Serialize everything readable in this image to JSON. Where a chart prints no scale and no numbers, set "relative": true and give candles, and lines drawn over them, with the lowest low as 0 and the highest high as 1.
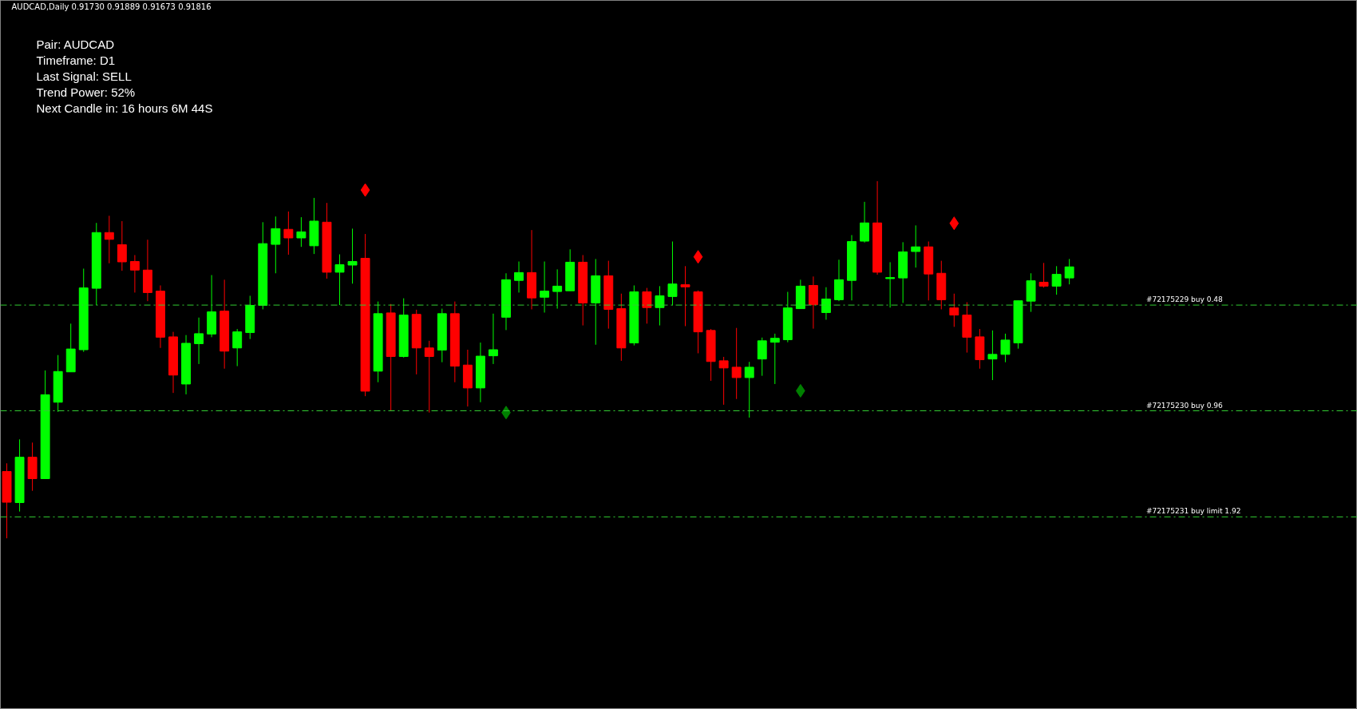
{
  "chart_data": {
    "type": "candlestick",
    "relative": true,
    "title": "AUDCAD,Daily  0.91730 0.91889 0.91673 0.91816",
    "annotations": [
      "Pair: AUDCAD",
      "Timeframe: D1",
      "Last Signal:  SELL",
      "Trend Power: 52%",
      "Next Candle in: 16 hours 6M 44S"
    ],
    "categories": [
      null,
      null,
      null,
      null,
      null,
      null,
      null,
      null,
      null,
      null,
      null,
      null,
      null,
      null,
      null,
      null,
      null,
      null,
      null,
      null,
      null,
      null,
      null,
      null,
      null,
      null,
      null,
      null,
      null,
      null,
      null,
      null,
      null,
      null,
      null,
      null,
      null,
      null,
      null,
      null,
      null,
      null,
      null,
      null,
      null,
      null,
      null,
      null,
      null,
      null,
      null,
      null,
      null,
      null,
      null,
      null,
      null,
      null,
      null,
      null,
      null,
      null,
      null,
      null,
      null,
      null,
      null,
      null,
      null,
      null,
      null,
      null,
      null,
      null,
      null,
      null,
      null,
      null,
      null,
      null,
      null,
      null,
      null,
      null
    ],
    "ohlc": [
      [
        0.187,
        0.21,
        0.0,
        0.101
      ],
      [
        0.1,
        0.277,
        0.075,
        0.227
      ],
      [
        0.227,
        0.268,
        0.133,
        0.167
      ],
      [
        0.167,
        0.47,
        0.167,
        0.402
      ],
      [
        0.381,
        0.513,
        0.354,
        0.467
      ],
      [
        0.466,
        0.601,
        0.466,
        0.53
      ],
      [
        0.528,
        0.755,
        0.522,
        0.701
      ],
      [
        0.7,
        0.883,
        0.653,
        0.856
      ],
      [
        0.856,
        0.903,
        0.77,
        0.837
      ],
      [
        0.822,
        0.888,
        0.749,
        0.774
      ],
      [
        0.775,
        0.793,
        0.688,
        0.751
      ],
      [
        0.751,
        0.836,
        0.664,
        0.688
      ],
      [
        0.692,
        0.708,
        0.533,
        0.563
      ],
      [
        0.564,
        0.578,
        0.407,
        0.457
      ],
      [
        0.432,
        0.569,
        0.403,
        0.546
      ],
      [
        0.545,
        0.618,
        0.488,
        0.573
      ],
      [
        0.572,
        0.737,
        0.563,
        0.634
      ],
      [
        0.636,
        0.724,
        0.475,
        0.524
      ],
      [
        0.533,
        0.586,
        0.482,
        0.578
      ],
      [
        0.576,
        0.679,
        0.558,
        0.652
      ],
      [
        0.652,
        0.885,
        0.641,
        0.825
      ],
      [
        0.823,
        0.901,
        0.742,
        0.867
      ],
      [
        0.865,
        0.915,
        0.794,
        0.841
      ],
      [
        0.841,
        0.899,
        0.816,
        0.858
      ],
      [
        0.819,
        0.953,
        0.796,
        0.888
      ],
      [
        0.885,
        0.939,
        0.727,
        0.745
      ],
      [
        0.745,
        0.795,
        0.653,
        0.766
      ],
      [
        0.765,
        0.867,
        0.713,
        0.775
      ],
      [
        0.784,
        0.852,
        0.398,
        0.412
      ],
      [
        0.468,
        0.663,
        0.437,
        0.629
      ],
      [
        0.631,
        0.656,
        0.357,
        0.509
      ],
      [
        0.509,
        0.672,
        0.506,
        0.625
      ],
      [
        0.627,
        0.64,
        0.459,
        0.533
      ],
      [
        0.533,
        0.553,
        0.352,
        0.509
      ],
      [
        0.527,
        0.643,
        0.493,
        0.629
      ],
      [
        0.629,
        0.663,
        0.437,
        0.482
      ],
      [
        0.485,
        0.528,
        0.369,
        0.421
      ],
      [
        0.421,
        0.548,
        0.381,
        0.51
      ],
      [
        0.511,
        0.629,
        0.488,
        0.528
      ],
      [
        0.619,
        0.742,
        0.583,
        0.724
      ],
      [
        0.722,
        0.775,
        0.688,
        0.744
      ],
      [
        0.744,
        0.863,
        0.641,
        0.673
      ],
      [
        0.675,
        0.775,
        0.632,
        0.692
      ],
      [
        0.691,
        0.753,
        0.643,
        0.706
      ],
      [
        0.693,
        0.809,
        0.693,
        0.773
      ],
      [
        0.773,
        0.793,
        0.596,
        0.659
      ],
      [
        0.659,
        0.782,
        0.542,
        0.735
      ],
      [
        0.735,
        0.777,
        0.587,
        0.641
      ],
      [
        0.643,
        0.685,
        0.497,
        0.533
      ],
      [
        0.547,
        0.708,
        0.54,
        0.69
      ],
      [
        0.69,
        0.701,
        0.601,
        0.646
      ],
      [
        0.646,
        0.706,
        0.596,
        0.679
      ],
      [
        0.677,
        0.831,
        0.652,
        0.712
      ],
      [
        0.71,
        0.762,
        0.594,
        0.704
      ],
      [
        0.69,
        0.694,
        0.518,
        0.578
      ],
      [
        0.582,
        0.586,
        0.441,
        0.495
      ],
      [
        0.497,
        0.508,
        0.374,
        0.477
      ],
      [
        0.479,
        0.589,
        0.39,
        0.45
      ],
      [
        0.45,
        0.494,
        0.338,
        0.479
      ],
      [
        0.502,
        0.562,
        0.455,
        0.553
      ],
      [
        0.549,
        0.573,
        0.432,
        0.56
      ],
      [
        0.556,
        0.69,
        0.549,
        0.645
      ],
      [
        0.643,
        0.724,
        0.643,
        0.706
      ],
      [
        0.708,
        0.733,
        0.587,
        0.654
      ],
      [
        0.632,
        0.703,
        0.612,
        0.67
      ],
      [
        0.668,
        0.78,
        0.664,
        0.724
      ],
      [
        0.722,
        0.849,
        0.666,
        0.831
      ],
      [
        0.832,
        0.942,
        0.828,
        0.883
      ],
      [
        0.883,
        1.0,
        0.738,
        0.745
      ],
      [
        0.727,
        0.773,
        0.646,
        0.73
      ],
      [
        0.729,
        0.829,
        0.659,
        0.802
      ],
      [
        0.803,
        0.876,
        0.758,
        0.816
      ],
      [
        0.816,
        0.831,
        0.666,
        0.74
      ],
      [
        0.742,
        0.777,
        0.641,
        0.668
      ],
      [
        0.645,
        0.685,
        0.592,
        0.625
      ],
      [
        0.625,
        0.661,
        0.52,
        0.563
      ],
      [
        0.564,
        0.586,
        0.475,
        0.5
      ],
      [
        0.502,
        0.582,
        0.443,
        0.515
      ],
      [
        0.515,
        0.573,
        0.493,
        0.555
      ],
      [
        0.547,
        0.665,
        0.531,
        0.665
      ],
      [
        0.664,
        0.742,
        0.634,
        0.721
      ],
      [
        0.717,
        0.771,
        0.702,
        0.706
      ],
      [
        0.706,
        0.762,
        0.682,
        0.739
      ],
      [
        0.729,
        0.782,
        0.711,
        0.76
      ]
    ],
    "colors": [
      "#ff0000",
      "#00ff00",
      "#ff0000",
      "#00ff00",
      "#00ff00",
      "#00ff00",
      "#00ff00",
      "#00ff00",
      "#ff0000",
      "#ff0000",
      "#ff0000",
      "#ff0000",
      "#ff0000",
      "#ff0000",
      "#00ff00",
      "#00ff00",
      "#00ff00",
      "#ff0000",
      "#00ff00",
      "#00ff00",
      "#00ff00",
      "#00ff00",
      "#ff0000",
      "#00ff00",
      "#00ff00",
      "#ff0000",
      "#00ff00",
      "#00ff00",
      "#ff0000",
      "#00ff00",
      "#ff0000",
      "#00ff00",
      "#ff0000",
      "#ff0000",
      "#00ff00",
      "#ff0000",
      "#ff0000",
      "#00ff00",
      "#00ff00",
      "#00ff00",
      "#00ff00",
      "#ff0000",
      "#00ff00",
      "#00ff00",
      "#00ff00",
      "#ff0000",
      "#00ff00",
      "#ff0000",
      "#ff0000",
      "#00ff00",
      "#ff0000",
      "#00ff00",
      "#00ff00",
      "#ff0000",
      "#ff0000",
      "#ff0000",
      "#ff0000",
      "#ff0000",
      "#00ff00",
      "#00ff00",
      "#00ff00",
      "#00ff00",
      "#00ff00",
      "#ff0000",
      "#00ff00",
      "#00ff00",
      "#00ff00",
      "#00ff00",
      "#ff0000",
      "#00ff00",
      "#00ff00",
      "#00ff00",
      "#ff0000",
      "#ff0000",
      "#ff0000",
      "#ff0000",
      "#ff0000",
      "#00ff00",
      "#00ff00",
      "#00ff00",
      "#00ff00",
      "#ff0000",
      "#00ff00",
      "#00ff00"
    ],
    "series": [
      {
        "type": "scatter",
        "color": "#ff0000",
        "values": [
          null,
          null,
          null,
          null,
          null,
          null,
          null,
          null,
          null,
          null,
          null,
          null,
          null,
          null,
          null,
          null,
          null,
          null,
          null,
          null,
          null,
          null,
          null,
          null,
          null,
          null,
          null,
          null,
          0.975,
          null,
          null,
          null,
          null,
          null,
          null,
          null,
          null,
          null,
          null,
          null,
          null,
          null,
          null,
          null,
          null,
          null,
          null,
          null,
          null,
          null,
          null,
          null,
          null,
          null,
          0.788,
          null,
          null,
          null,
          null,
          null,
          null,
          null,
          null,
          null,
          null,
          null,
          null,
          null,
          null,
          null,
          null,
          null,
          null,
          null,
          0.882,
          null,
          null,
          null,
          null,
          null,
          null,
          null,
          null,
          null
        ]
      },
      {
        "type": "scatter",
        "color": "#008000",
        "values": [
          null,
          null,
          null,
          null,
          null,
          null,
          null,
          null,
          null,
          null,
          null,
          null,
          null,
          null,
          null,
          null,
          null,
          null,
          null,
          null,
          null,
          null,
          null,
          null,
          null,
          null,
          null,
          null,
          null,
          null,
          null,
          null,
          null,
          null,
          null,
          null,
          null,
          null,
          null,
          0.352,
          null,
          null,
          null,
          null,
          null,
          null,
          null,
          null,
          null,
          null,
          null,
          null,
          null,
          null,
          null,
          null,
          null,
          null,
          null,
          null,
          null,
          null,
          0.413,
          null,
          null,
          null,
          null,
          null,
          null,
          null,
          null,
          null,
          null,
          null,
          null,
          null,
          null,
          null,
          null,
          null,
          null,
          null,
          null,
          null
        ]
      }
    ],
    "marker": "diamond",
    "ref_lines": [
      {
        "axis": "y",
        "value": 0.653,
        "label": "#72175229 buy 0.48",
        "color": "#32cd32",
        "line_style": "dashed"
      },
      {
        "axis": "y",
        "value": 0.357,
        "label": "#72175230 buy 0.96",
        "color": "#32cd32",
        "line_style": "dashed"
      },
      {
        "axis": "y",
        "value": 0.06,
        "label": "#72175231 buy limit 1.92",
        "color": "#32cd32",
        "line_style": "dashed"
      }
    ],
    "grid": false,
    "tick_labels": false
  }
}
